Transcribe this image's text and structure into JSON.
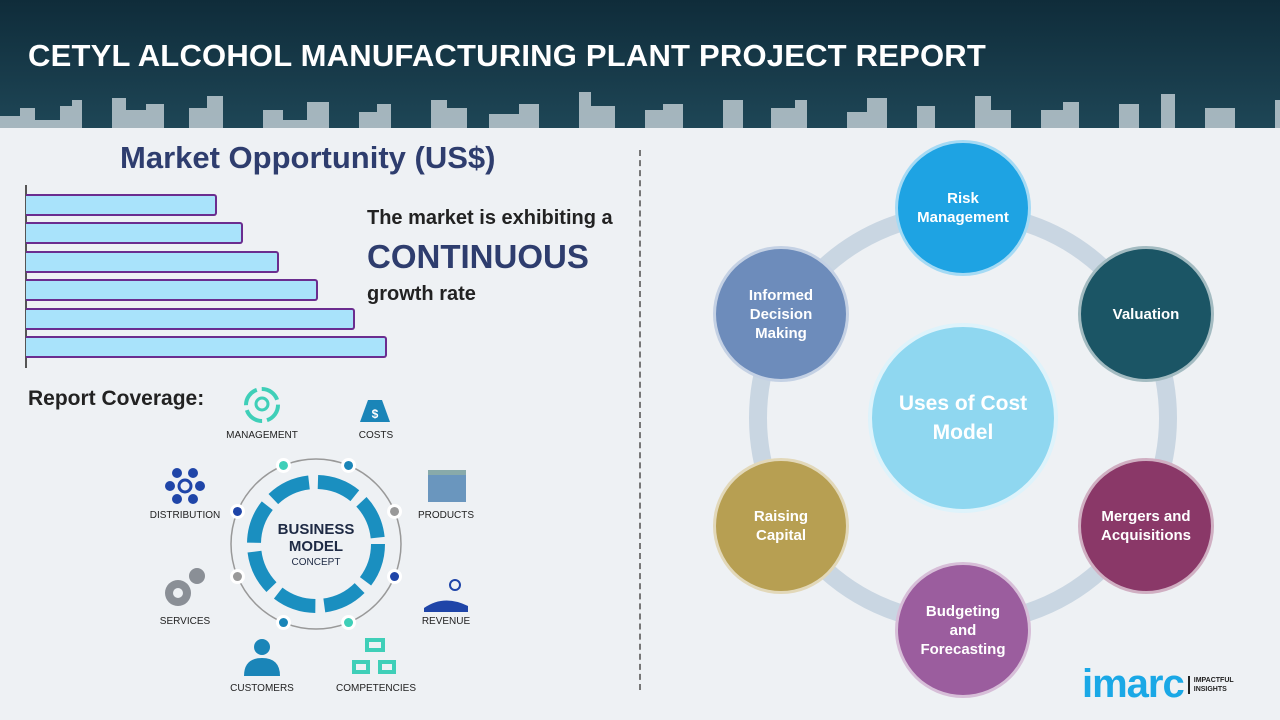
{
  "header": {
    "title": "CETYL ALCOHOL MANUFACTURING PLANT PROJECT REPORT"
  },
  "market": {
    "title": "Market Opportunity (US$)",
    "bar_levels": [
      0.53,
      0.6,
      0.7,
      0.81,
      0.91,
      1.0
    ],
    "bar_fill": "#a9e3fb",
    "bar_border": "#6b2d8f",
    "line1": "The market is exhibiting a",
    "highlight": "CONTINUOUS",
    "line3": "growth rate"
  },
  "coverage": {
    "title": "Report Coverage:",
    "center_line1": "BUSINESS",
    "center_line2": "MODEL",
    "center_line3": "CONCEPT",
    "items": [
      {
        "label": "MANAGEMENT",
        "icon": "lightbulb-cycle-icon"
      },
      {
        "label": "COSTS",
        "icon": "money-bag-icon"
      },
      {
        "label": "PRODUCTS",
        "icon": "box-icon"
      },
      {
        "label": "REVENUE",
        "icon": "hand-coins-icon"
      },
      {
        "label": "COMPETENCIES",
        "icon": "hierarchy-icon"
      },
      {
        "label": "CUSTOMERS",
        "icon": "person-icon"
      },
      {
        "label": "SERVICES",
        "icon": "gears-icon"
      },
      {
        "label": "DISTRIBUTION",
        "icon": "network-icon"
      }
    ]
  },
  "uses": {
    "center": "Uses of Cost Model",
    "items": [
      {
        "label": "Risk Management",
        "color": "#1ea3e3"
      },
      {
        "label": "Valuation",
        "color": "#1b5565"
      },
      {
        "label": "Mergers and Acquisitions",
        "color": "#8a3868"
      },
      {
        "label": "Budgeting and Forecasting",
        "color": "#9b5d9e"
      },
      {
        "label": "Raising Capital",
        "color": "#b79f52"
      },
      {
        "label": "Informed Decision Making",
        "color": "#6d8cbb"
      }
    ]
  },
  "logo": {
    "brand": "imarc",
    "tagline1": "IMPACTFUL",
    "tagline2": "INSIGHTS"
  }
}
